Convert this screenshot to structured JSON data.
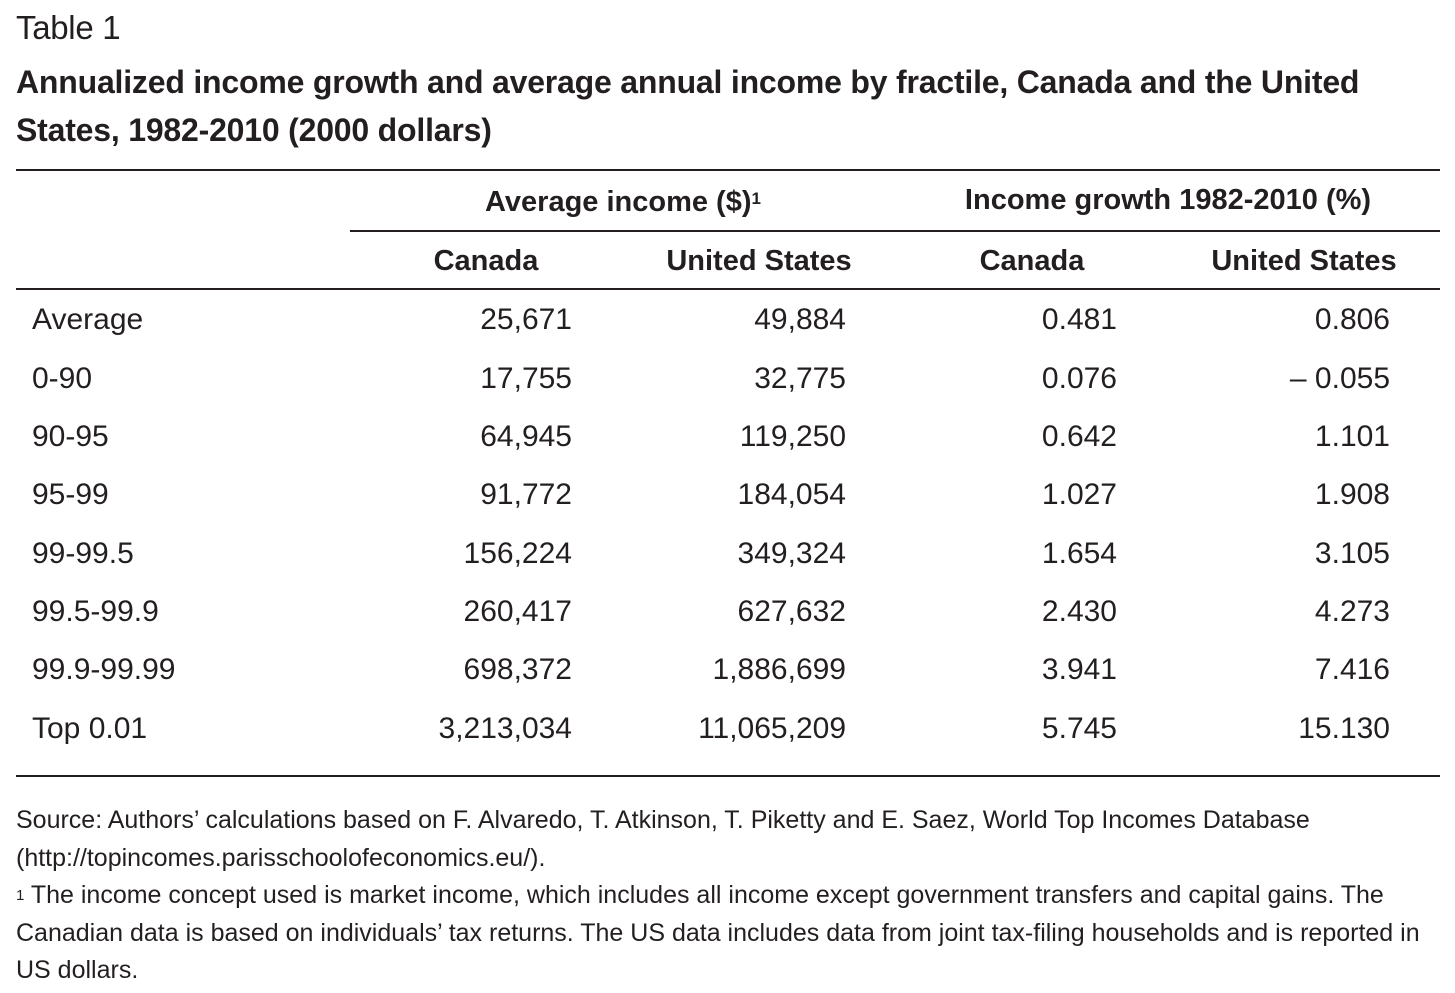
{
  "table_label": "Table 1",
  "title": "Annualized income growth and average annual income by fractile, Canada and the United States, 1982-2010 (2000 dollars)",
  "group_headers": {
    "average_income": "Average income ($)",
    "average_income_footnote_mark": "1",
    "income_growth": "Income growth 1982-2010 (%)"
  },
  "column_headers": [
    "Canada",
    "United States",
    "Canada",
    "United States"
  ],
  "rows": [
    {
      "label": "Average",
      "values": [
        "25,671",
        "49,884",
        "0.481",
        "0.806"
      ]
    },
    {
      "label": "0-90",
      "values": [
        "17,755",
        "32,775",
        "0.076",
        "– 0.055"
      ]
    },
    {
      "label": "90-95",
      "values": [
        "64,945",
        "119,250",
        "0.642",
        "1.101"
      ]
    },
    {
      "label": "95-99",
      "values": [
        "91,772",
        "184,054",
        "1.027",
        "1.908"
      ]
    },
    {
      "label": "99-99.5",
      "values": [
        "156,224",
        "349,324",
        "1.654",
        "3.105"
      ]
    },
    {
      "label": "99.5-99.9",
      "values": [
        "260,417",
        "627,632",
        "2.430",
        "4.273"
      ]
    },
    {
      "label": "99.9-99.99",
      "values": [
        "698,372",
        "1,886,699",
        "3.941",
        "7.416"
      ]
    },
    {
      "label": "Top 0.01",
      "values": [
        "3,213,034",
        "11,065,209",
        "5.745",
        "15.130"
      ]
    }
  ],
  "source_note": "Source: Authors’ calculations based on F. Alvaredo, T. Atkinson, T. Piketty and E. Saez, World Top Incomes Database (http://topincomes.parisschoolofeconomics.eu/).",
  "footnote": {
    "mark": "1",
    "text": " The income concept used is market income, which includes all income except government transfers and capital gains. The Canadian data is based on individuals’ tax returns. The US data includes data from joint tax-filing households and is reported in US dollars."
  }
}
